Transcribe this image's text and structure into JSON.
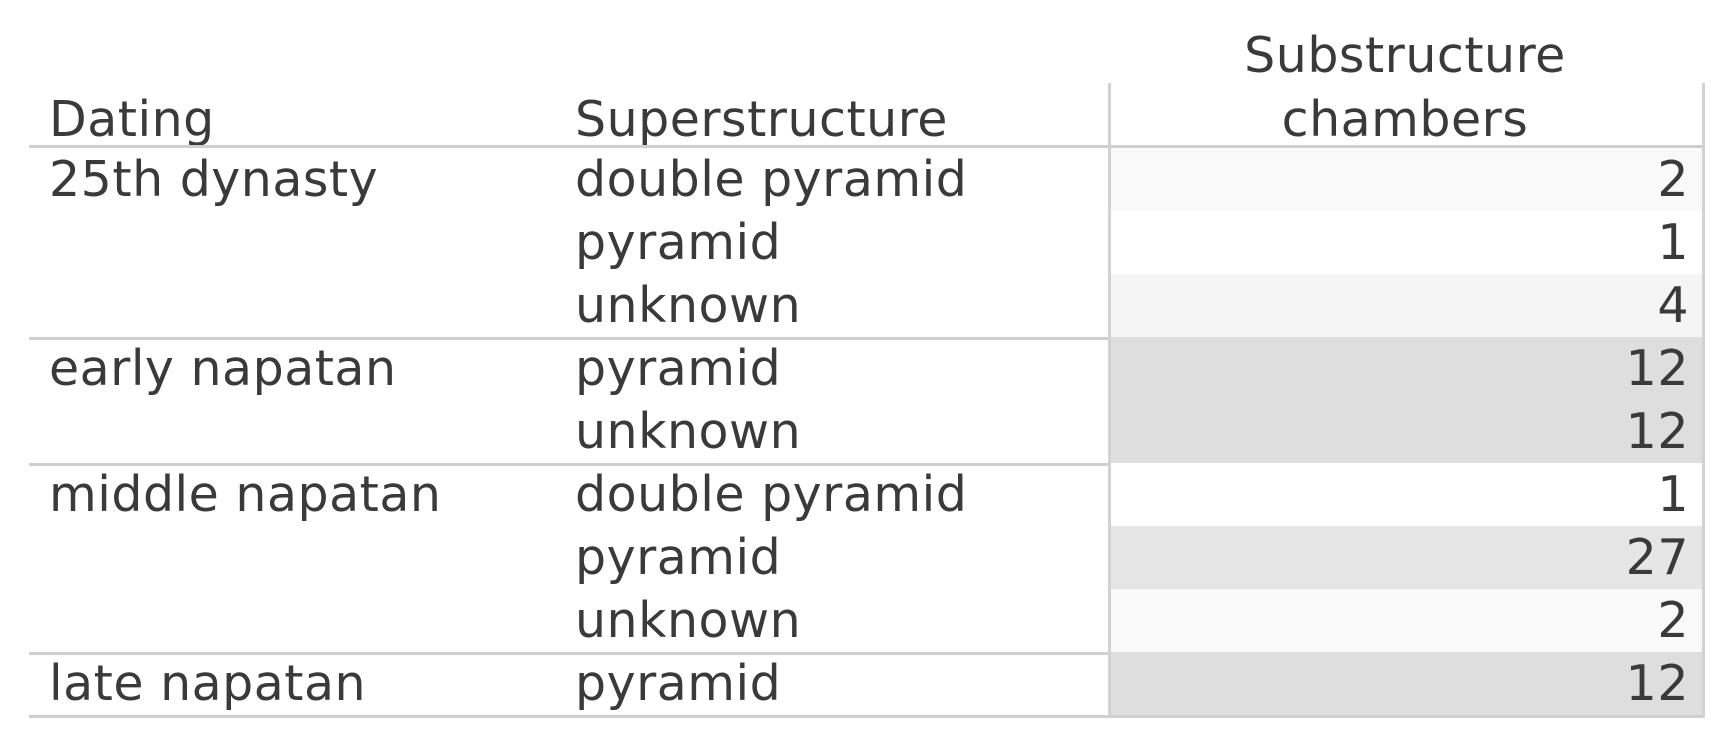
{
  "chart_data": {
    "type": "table",
    "columns": [
      "Dating",
      "Superstructure",
      "Substructure chambers"
    ],
    "header_lines": {
      "dating": "Dating",
      "superstructure": "Superstructure",
      "substructure_line1": "Substructure",
      "substructure_line2": "chambers"
    },
    "groups": [
      {
        "dating": "25th dynasty",
        "rows": [
          {
            "superstructure": "double pyramid",
            "chambers": 2,
            "shade": "#f9f9f9"
          },
          {
            "superstructure": "pyramid",
            "chambers": 1,
            "shade": "#ffffff"
          },
          {
            "superstructure": "unknown",
            "chambers": 4,
            "shade": "#f5f5f5"
          }
        ]
      },
      {
        "dating": "early napatan",
        "rows": [
          {
            "superstructure": "pyramid",
            "chambers": 12,
            "shade": "#dedede"
          },
          {
            "superstructure": "unknown",
            "chambers": 12,
            "shade": "#dedede"
          }
        ]
      },
      {
        "dating": "middle napatan",
        "rows": [
          {
            "superstructure": "double pyramid",
            "chambers": 1,
            "shade": "#ffffff"
          },
          {
            "superstructure": "pyramid",
            "chambers": 27,
            "shade": "#e6e6e6"
          },
          {
            "superstructure": "unknown",
            "chambers": 2,
            "shade": "#f9f9f9"
          }
        ]
      },
      {
        "dating": "late napatan",
        "rows": [
          {
            "superstructure": "pyramid",
            "chambers": 12,
            "shade": "#dedede"
          }
        ]
      }
    ]
  },
  "colors": {
    "text": "#3a3a3a",
    "rule": "#cfcfcf"
  }
}
